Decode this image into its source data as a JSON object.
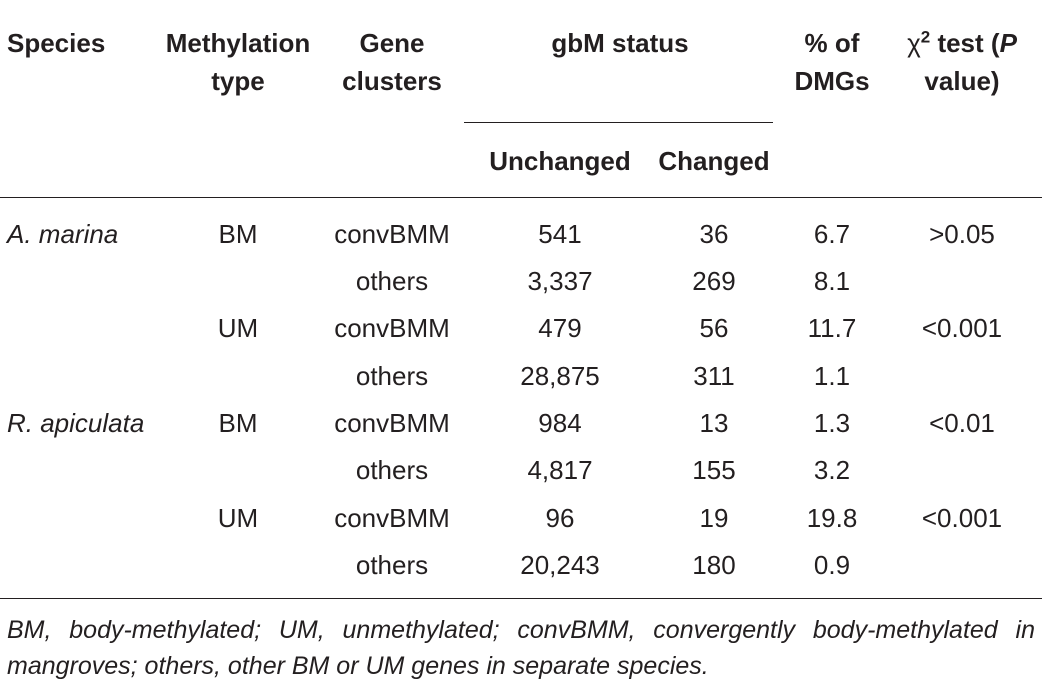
{
  "headers": {
    "species": "Species",
    "methylation_type": [
      "Methylation",
      "type"
    ],
    "gene_clusters": [
      "Gene",
      "clusters"
    ],
    "gbm_status": "gbM status",
    "percent_dmgs": [
      "% of",
      "DMGs"
    ],
    "chi_test": {
      "prefix": "χ",
      "sup": "2",
      "mid": " test (",
      "p": "P",
      "line2": "value)"
    },
    "unchanged": "Unchanged",
    "changed": "Changed"
  },
  "rows": [
    {
      "species": "A. marina",
      "type": "BM",
      "cluster": "convBMM",
      "unchanged": "541",
      "changed": "36",
      "pct": "6.7",
      "p": ">0.05"
    },
    {
      "species": "",
      "type": "",
      "cluster": "others",
      "unchanged": "3,337",
      "changed": "269",
      "pct": "8.1",
      "p": ""
    },
    {
      "species": "",
      "type": "UM",
      "cluster": "convBMM",
      "unchanged": "479",
      "changed": "56",
      "pct": "11.7",
      "p": "<0.001"
    },
    {
      "species": "",
      "type": "",
      "cluster": "others",
      "unchanged": "28,875",
      "changed": "311",
      "pct": "1.1",
      "p": ""
    },
    {
      "species": "R. apiculata",
      "type": "BM",
      "cluster": "convBMM",
      "unchanged": "984",
      "changed": "13",
      "pct": "1.3",
      "p": "<0.01"
    },
    {
      "species": "",
      "type": "",
      "cluster": "others",
      "unchanged": "4,817",
      "changed": "155",
      "pct": "3.2",
      "p": ""
    },
    {
      "species": "",
      "type": "UM",
      "cluster": "convBMM",
      "unchanged": "96",
      "changed": "19",
      "pct": "19.8",
      "p": "<0.001"
    },
    {
      "species": "",
      "type": "",
      "cluster": "others",
      "unchanged": "20,243",
      "changed": "180",
      "pct": "0.9",
      "p": ""
    }
  ],
  "footnote": "BM, body-methylated; UM, unmethylated; convBMM, convergently body-methylated in mangroves; others, other BM or UM genes in separate species."
}
